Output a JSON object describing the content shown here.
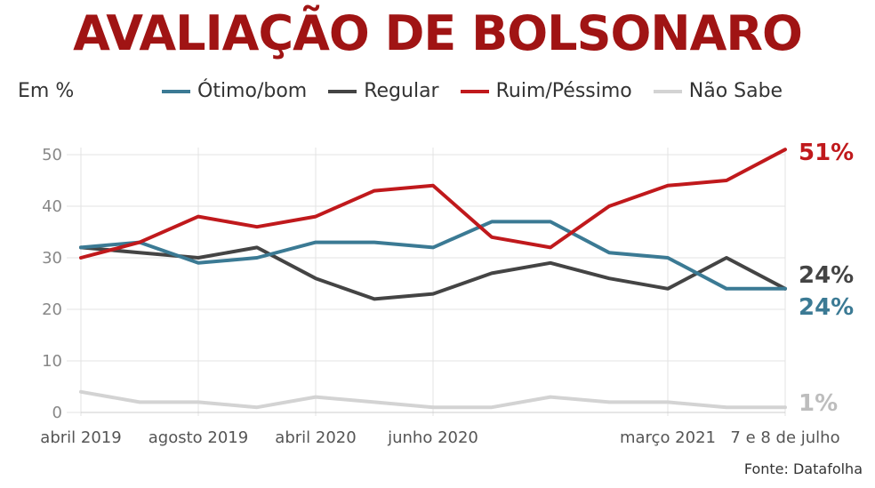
{
  "header": {
    "title": "AVALIAÇÃO DE BOLSONARO",
    "unit_label": "Em %"
  },
  "source": "Fonte: Datafolha",
  "chart_data": {
    "type": "line",
    "title": "AVALIAÇÃO DE BOLSONARO",
    "ylabel": "Em %",
    "ylim": [
      0,
      50
    ],
    "yticks": [
      0,
      10,
      20,
      30,
      40,
      50
    ],
    "grid": true,
    "legend_position": "top",
    "x_tick_labels": [
      "abril 2019",
      "agosto 2019",
      "abril 2020",
      "junho 2020",
      "março 2021",
      "7 e 8 de julho"
    ],
    "x_tick_index": [
      0,
      2,
      4,
      6,
      10,
      12
    ],
    "x_count": 13,
    "series": [
      {
        "name": "Ótimo/bom",
        "color": "#3b7a94",
        "values": [
          32,
          33,
          29,
          30,
          33,
          33,
          32,
          37,
          37,
          31,
          30,
          24,
          24
        ],
        "end_label": "24%"
      },
      {
        "name": "Regular",
        "color": "#444444",
        "values": [
          32,
          31,
          30,
          32,
          26,
          22,
          23,
          27,
          29,
          26,
          24,
          30,
          24
        ],
        "end_label": "24%"
      },
      {
        "name": "Ruim/Péssimo",
        "color": "#c0191c",
        "values": [
          30,
          33,
          38,
          36,
          38,
          43,
          44,
          34,
          32,
          40,
          44,
          45,
          51
        ],
        "end_label": "51%"
      },
      {
        "name": "Não Sabe",
        "color": "#d3d3d3",
        "values": [
          4,
          2,
          2,
          1,
          3,
          2,
          1,
          1,
          3,
          2,
          2,
          1,
          1
        ],
        "end_label": "1%"
      }
    ]
  }
}
